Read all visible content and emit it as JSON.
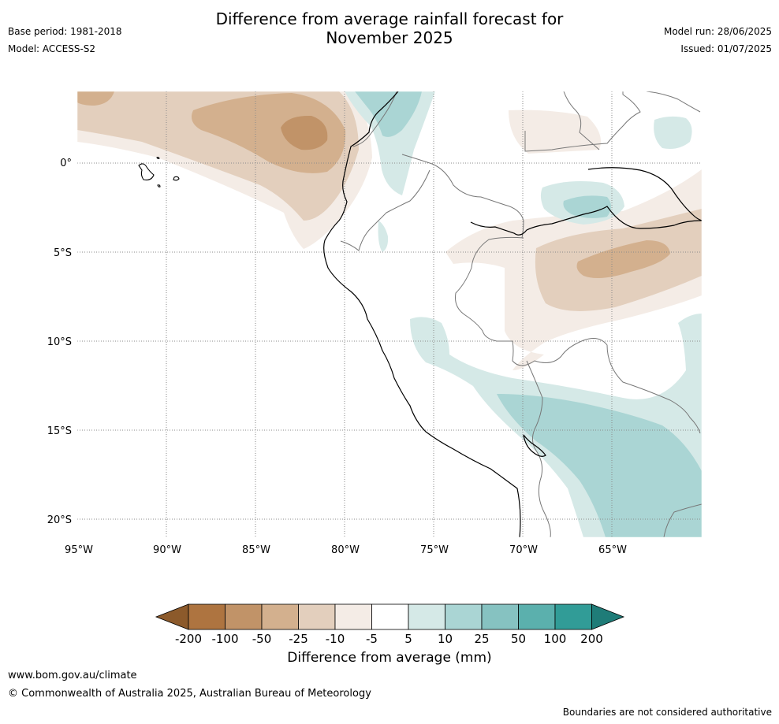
{
  "header": {
    "title_line1": "Difference from average rainfall forecast for",
    "title_line2": "November 2025",
    "base_period": "Base period: 1981-2018",
    "model": "Model: ACCESS-S2",
    "model_run": "Model run: 28/06/2025",
    "issued": "Issued: 01/07/2025"
  },
  "map": {
    "lon_labels": [
      "95°W",
      "90°W",
      "85°W",
      "80°W",
      "75°W",
      "70°W",
      "65°W"
    ],
    "lat_labels": [
      "0°",
      "5°S",
      "10°S",
      "15°S",
      "20°S"
    ]
  },
  "colorbar": {
    "ticks": [
      "-200",
      "-100",
      "-50",
      "-25",
      "-10",
      "-5",
      "5",
      "10",
      "25",
      "50",
      "100",
      "200"
    ],
    "colors": [
      "#8c5a2b",
      "#ae7440",
      "#c19368",
      "#d3b08e",
      "#e3cfbd",
      "#f4ece6",
      "#ffffff",
      "#d5e9e7",
      "#aad5d4",
      "#86c2c1",
      "#5bb0ad",
      "#319c97",
      "#1f7c78"
    ],
    "label": "Difference from average (mm)"
  },
  "footer": {
    "url": "www.bom.gov.au/climate",
    "copyright": "© Commonwealth of Australia 2025, Australian Bureau of Meteorology",
    "note": "Boundaries are not considered authoritative"
  }
}
